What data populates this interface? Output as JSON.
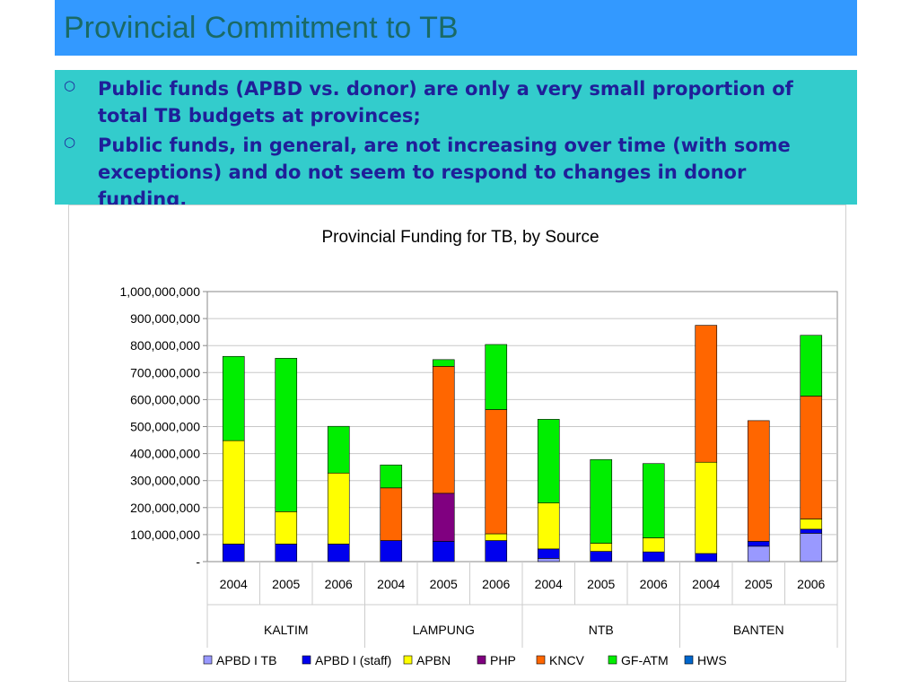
{
  "slide": {
    "title": "Provincial Commitment to TB",
    "bullets": [
      "Public funds (APBD vs. donor) are only a very small proportion of total TB budgets at provinces;",
      "Public funds, in general, are not increasing over time (with some exceptions) and do not seem to respond to changes in donor funding."
    ],
    "bullet_marker": "○"
  },
  "colors": {
    "title_bar": "#3399ff",
    "title_text": "#1a6a66",
    "bullet_box": "#33cccc",
    "bullet_text": "#1f1f99"
  },
  "chart_data": {
    "type": "bar",
    "stacked": true,
    "title": "Provincial Funding for TB, by Source",
    "xlabel": "",
    "ylabel": "",
    "ylim": [
      0,
      1000000000
    ],
    "yticks": [
      "-",
      "100,000,000",
      "200,000,000",
      "300,000,000",
      "400,000,000",
      "500,000,000",
      "600,000,000",
      "700,000,000",
      "800,000,000",
      "900,000,000",
      "1,000,000,000"
    ],
    "grid": true,
    "legend_position": "bottom",
    "groups": [
      {
        "name": "KALTIM",
        "years": [
          "2004",
          "2005",
          "2006"
        ]
      },
      {
        "name": "LAMPUNG",
        "years": [
          "2004",
          "2005",
          "2006"
        ]
      },
      {
        "name": "NTB",
        "years": [
          "2004",
          "2005",
          "2006"
        ]
      },
      {
        "name": "BANTEN",
        "years": [
          "2004",
          "2005",
          "2006"
        ]
      }
    ],
    "categories": [
      "KALTIM 2004",
      "KALTIM 2005",
      "KALTIM 2006",
      "LAMPUNG 2004",
      "LAMPUNG 2005",
      "LAMPUNG 2006",
      "NTB 2004",
      "NTB 2005",
      "NTB 2006",
      "BANTEN 2004",
      "BANTEN 2005",
      "BANTEN 2006"
    ],
    "series": [
      {
        "name": "APBD I TB",
        "color": "#9999ff",
        "values": [
          0,
          0,
          0,
          0,
          0,
          0,
          12000000,
          0,
          0,
          0,
          57000000,
          105000000
        ]
      },
      {
        "name": "APBD I (staff)",
        "color": "#0000ee",
        "values": [
          65000000,
          65000000,
          65000000,
          78000000,
          75000000,
          78000000,
          35000000,
          38000000,
          36000000,
          30000000,
          18000000,
          15000000
        ]
      },
      {
        "name": "APBN",
        "color": "#ffff00",
        "values": [
          383000000,
          120000000,
          263000000,
          0,
          0,
          25000000,
          170000000,
          30000000,
          52000000,
          338000000,
          0,
          38000000
        ]
      },
      {
        "name": "PHP",
        "color": "#800080",
        "values": [
          0,
          0,
          0,
          0,
          178000000,
          0,
          0,
          0,
          0,
          0,
          0,
          0
        ]
      },
      {
        "name": "KNCV",
        "color": "#ff6600",
        "values": [
          0,
          0,
          0,
          195000000,
          470000000,
          460000000,
          0,
          0,
          0,
          507000000,
          447000000,
          455000000
        ]
      },
      {
        "name": "GF-ATM",
        "color": "#00ee00",
        "values": [
          312000000,
          568000000,
          173000000,
          85000000,
          25000000,
          241000000,
          310000000,
          310000000,
          275000000,
          0,
          0,
          225000000
        ]
      },
      {
        "name": "HWS",
        "color": "#0066cc",
        "values": [
          0,
          0,
          0,
          0,
          0,
          0,
          0,
          0,
          0,
          0,
          0,
          0
        ]
      }
    ]
  }
}
